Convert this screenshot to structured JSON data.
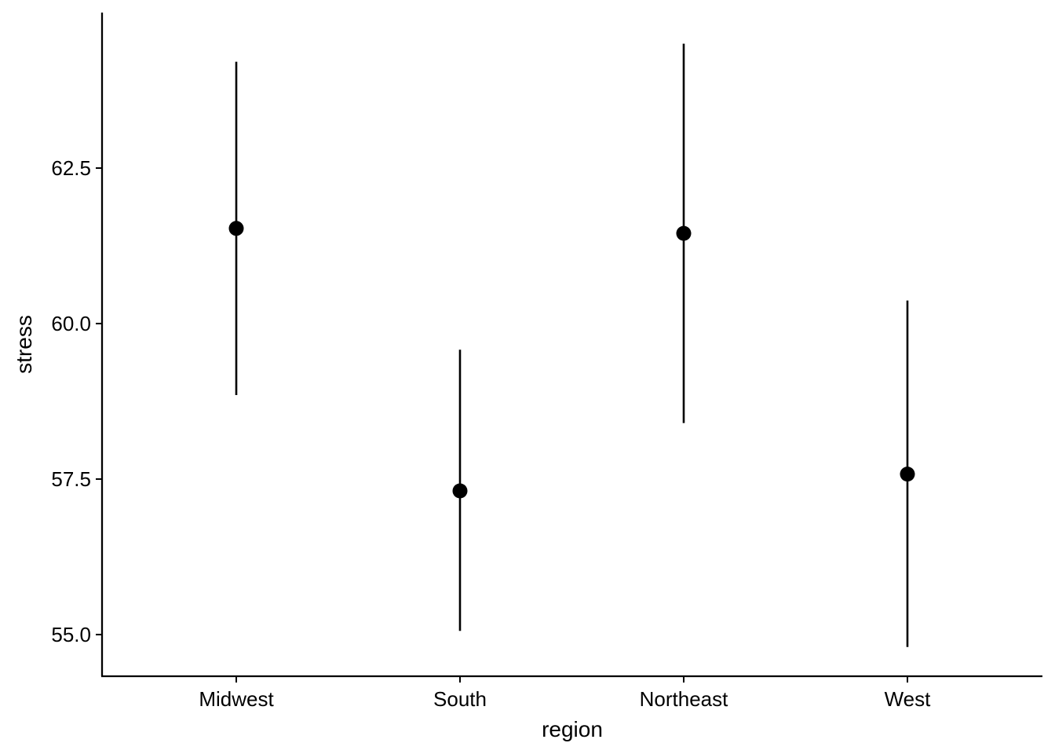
{
  "chart_data": {
    "type": "scatter",
    "subtype": "pointrange",
    "xlabel": "region",
    "ylabel": "stress",
    "categories": [
      "Midwest",
      "South",
      "Northeast",
      "West"
    ],
    "values": [
      61.53,
      57.31,
      61.45,
      57.58
    ],
    "lower": [
      58.85,
      55.06,
      58.4,
      54.8
    ],
    "upper": [
      64.21,
      59.58,
      64.5,
      60.37
    ],
    "yticks": [
      55.0,
      57.5,
      60.0,
      62.5
    ],
    "ytick_labels": [
      "55.0",
      "57.5",
      "60.0",
      "62.5"
    ],
    "ylim": [
      54.33,
      65.0
    ],
    "grid": false,
    "legend": "none",
    "colors": {
      "point": "#000000",
      "errorbar": "#000000",
      "axis": "#000000"
    }
  }
}
